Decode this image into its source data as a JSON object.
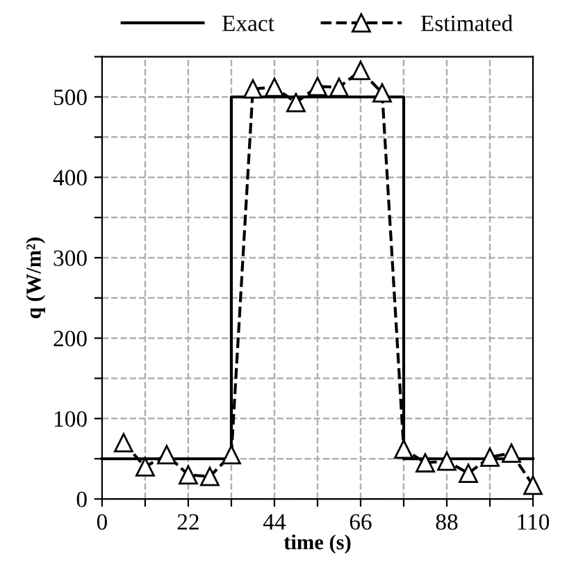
{
  "chart_data": {
    "type": "line",
    "xlabel": "time (s)",
    "ylabel": "q (W/m²)",
    "xlim": [
      0,
      110
    ],
    "ylim": [
      0,
      550
    ],
    "xticks": [
      0,
      {
        "value": 11,
        "label": null
      },
      22,
      {
        "value": 33,
        "label": null
      },
      44,
      {
        "value": 55,
        "label": null
      },
      66,
      {
        "value": 77,
        "label": null
      },
      88,
      {
        "value": 99,
        "label": null
      },
      110
    ],
    "yticks": [
      0,
      {
        "value": 50,
        "label": null
      },
      100,
      {
        "value": 150,
        "label": null
      },
      200,
      {
        "value": 250,
        "label": null
      },
      300,
      {
        "value": 350,
        "label": null
      },
      400,
      {
        "value": 450,
        "label": null
      },
      500,
      {
        "value": 550,
        "label": null
      }
    ],
    "grid": true,
    "legend": "top",
    "series": [
      {
        "name": "Exact",
        "color": "#000000",
        "line_style": "solid",
        "marker": "none",
        "x": [
          0,
          33,
          33,
          77,
          77,
          110
        ],
        "values": [
          50,
          50,
          500,
          500,
          50,
          50
        ]
      },
      {
        "name": "Estimated",
        "color": "#000000",
        "line_style": "dashed",
        "marker": "triangle",
        "x": [
          5.5,
          11,
          16.5,
          22,
          27.5,
          33,
          38.5,
          44,
          49.5,
          55,
          60.5,
          66,
          71.5,
          77,
          82.5,
          88,
          93.5,
          99,
          104.5,
          110
        ],
        "values": [
          70,
          40,
          55,
          30,
          28,
          55,
          510,
          512,
          493,
          513,
          512,
          533,
          505,
          62,
          45,
          47,
          32,
          52,
          57,
          17
        ]
      }
    ]
  }
}
